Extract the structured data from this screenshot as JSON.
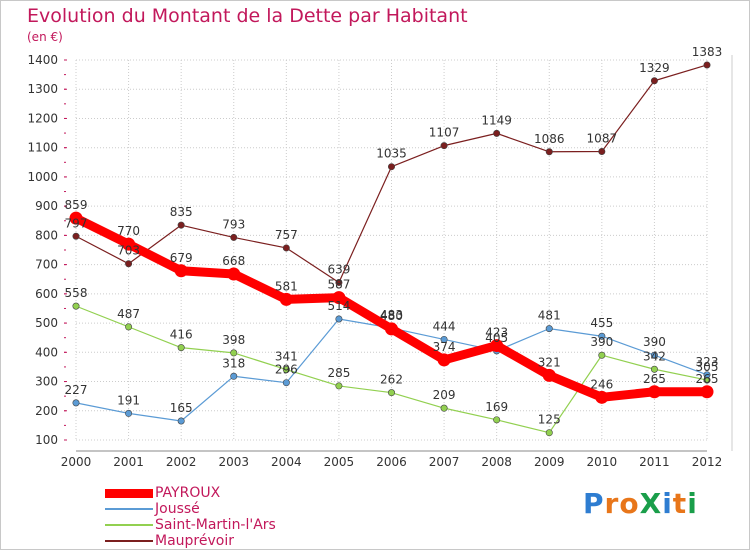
{
  "title": "Evolution du Montant de la Dette par Habitant",
  "subtitle": "(en €)",
  "logo": {
    "text": "ProXiti",
    "colors": [
      "#2e7dd1",
      "#e8761a",
      "#e8761a",
      "#1a9e4a",
      "#2e7dd1",
      "#e8761a",
      "#1a9e4a"
    ]
  },
  "chart_data": {
    "type": "line",
    "x": [
      "2000",
      "2001",
      "2002",
      "2003",
      "2004",
      "2005",
      "2006",
      "2007",
      "2008",
      "2009",
      "2010",
      "2011",
      "2012"
    ],
    "ylim": [
      100,
      1400
    ],
    "yticks": [
      100,
      200,
      300,
      400,
      500,
      600,
      700,
      800,
      900,
      1000,
      1100,
      1200,
      1300,
      1400
    ],
    "grid": true,
    "legend_position": "bottom-left",
    "series": [
      {
        "name": "PAYROUX",
        "color": "#ff0000",
        "values": [
          859,
          770,
          679,
          668,
          581,
          587,
          480,
          374,
          423,
          321,
          246,
          265,
          265
        ]
      },
      {
        "name": "Joussé",
        "color": "#5b9bd5",
        "values": [
          227,
          191,
          165,
          318,
          296,
          514,
          483,
          444,
          405,
          481,
          455,
          390,
          323
        ]
      },
      {
        "name": "Saint-Martin-l'Ars",
        "color": "#92d050",
        "values": [
          558,
          487,
          416,
          398,
          341,
          285,
          262,
          209,
          169,
          125,
          390,
          342,
          305
        ]
      },
      {
        "name": "Mauprévoir",
        "color": "#7b1f1f",
        "values": [
          797,
          703,
          835,
          793,
          757,
          639,
          1035,
          1107,
          1149,
          1086,
          1087,
          1329,
          1383
        ]
      }
    ],
    "value_labels": [
      [
        "859",
        "770",
        "679",
        "668",
        "581",
        "587",
        "480",
        "374",
        "423",
        "321",
        "246",
        "265",
        "265"
      ],
      [
        "227",
        "191",
        "165",
        "318",
        "296",
        "514",
        "483",
        "444",
        "405",
        "481",
        "455",
        "390",
        "323"
      ],
      [
        "558",
        "487",
        "416",
        "398",
        "341",
        "285",
        "262",
        "209",
        "169",
        "125",
        "390",
        "342",
        "305"
      ],
      [
        "797",
        "703",
        "835",
        "793",
        "757",
        "639",
        "1035",
        "1107",
        "1149",
        "1086",
        "1087",
        "1329",
        "1383"
      ]
    ]
  }
}
